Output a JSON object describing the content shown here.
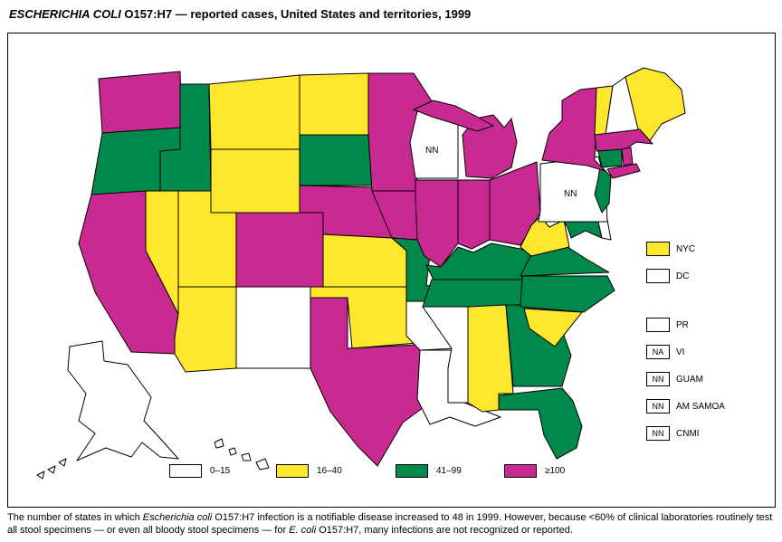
{
  "figure": {
    "title_segments": [
      {
        "text": "ESCHERICHIA COLI",
        "italic": true
      },
      {
        "text": " O157:H7 — reported cases, United States and territories, 1999",
        "italic": false
      }
    ]
  },
  "colors": {
    "0–15": "#FFFFFF",
    "16–40": "#FFE72E",
    "41–99": "#00894A",
    "≥100": "#C82A92",
    "border": "#000000"
  },
  "legend": {
    "items": [
      {
        "label": "0–15"
      },
      {
        "label": "16–40"
      },
      {
        "label": "41–99"
      },
      {
        "label": "≥100"
      }
    ]
  },
  "chart_data": {
    "type": "choropleth",
    "title": "ESCHERICHIA COLI O157:H7 — reported cases, United States and territories, 1999",
    "unit": "reported cases per state, 1999",
    "categories": [
      "0–15",
      "16–40",
      "41–99",
      "≥100"
    ],
    "states": {
      "WA": "≥100",
      "OR": "41–99",
      "CA": "≥100",
      "NV": "16–40",
      "ID": "41–99",
      "MT": "16–40",
      "WY": "16–40",
      "UT": "16–40",
      "CO": "≥100",
      "AZ": "16–40",
      "NM": "0–15",
      "ND": "16–40",
      "SD": "41–99",
      "NE": "≥100",
      "KS": "16–40",
      "OK": "16–40",
      "TX": "≥100",
      "MN": "≥100",
      "IA": "≥100",
      "MO": "41–99",
      "AR": "0–15",
      "LA": "0–15",
      "WI": "0–15",
      "IL": "≥100",
      "MI": "≥100",
      "IN": "≥100",
      "OH": "≥100",
      "KY": "41–99",
      "TN": "41–99",
      "MS": "0–15",
      "AL": "16–40",
      "GA": "41–99",
      "FL": "41–99",
      "SC": "16–40",
      "NC": "41–99",
      "VA": "41–99",
      "WV": "16–40",
      "MD": "41–99",
      "DE": "0–15",
      "PA": "0–15",
      "NJ": "41–99",
      "NY": "≥100",
      "CT": "41–99",
      "RI": "≥100",
      "MA": "≥100",
      "VT": "16–40",
      "NH": "0–15",
      "ME": "16–40",
      "AK": "0–15",
      "HI": "0–15"
    },
    "state_annotations": {
      "WI": "NN",
      "PA": "NN"
    },
    "territories": [
      {
        "label": "NYC",
        "value": "16–40",
        "box_text": "",
        "gap_before": false
      },
      {
        "label": "DC",
        "value": "0–15",
        "box_text": "",
        "gap_before": false
      },
      {
        "label": "PR",
        "value": "0–15",
        "box_text": "",
        "gap_before": true
      },
      {
        "label": "VI",
        "value": "",
        "box_text": "NA",
        "gap_before": false
      },
      {
        "label": "GUAM",
        "value": "",
        "box_text": "NN",
        "gap_before": false
      },
      {
        "label": "AM SAMOA",
        "value": "",
        "box_text": "NN",
        "gap_before": false
      },
      {
        "label": "CNMI",
        "value": "",
        "box_text": "NN",
        "gap_before": false
      }
    ]
  },
  "footnote_segments": [
    {
      "text": "The number of states in which ",
      "italic": false
    },
    {
      "text": "Escherichia coli",
      "italic": true
    },
    {
      "text": " O157:H7 infection is a notifiable disease increased to 48 in 1999.  However, because <60% of clinical laboratories routinely test all stool specimens — or even all bloody stool specimens — for ",
      "italic": false
    },
    {
      "text": "E. coli",
      "italic": true
    },
    {
      "text": " O157:H7, many infections are not recognized or reported.",
      "italic": false
    }
  ]
}
